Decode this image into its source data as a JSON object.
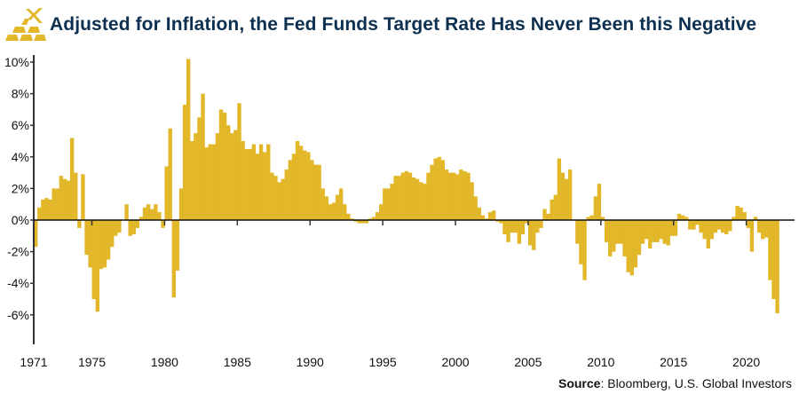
{
  "title": "Adjusted for Inflation, the Fed Funds Target Rate Has Never Been this Negative",
  "source": {
    "label": "Source",
    "text": ": Bloomberg, U.S. Global Investors"
  },
  "logo_icon": "gold-bars-icon",
  "chart_data": {
    "type": "bar",
    "title": "Adjusted for Inflation, the Fed Funds Target Rate Has Never Been this Negative",
    "xlabel": "",
    "ylabel": "",
    "unit": "%",
    "frequency": "quarterly",
    "xlim": [
      1971,
      2022.5
    ],
    "ylim": [
      -8,
      10
    ],
    "grid": false,
    "legend": "none",
    "bar_color": "#e2b82a",
    "x_tick_labels": [
      "1971",
      "1975",
      "1980",
      "1985",
      "1990",
      "1995",
      "2000",
      "2005",
      "2010",
      "2015",
      "2020"
    ],
    "y_tick_labels": [
      "10%",
      "8%",
      "6%",
      "4%",
      "2%",
      "0%",
      "-2%",
      "-4%",
      "-6%"
    ],
    "y_ticks": [
      10,
      8,
      6,
      4,
      2,
      0,
      -2,
      -4,
      -6
    ],
    "values_by_year": {
      "1971": [
        -1.7,
        0.8,
        1.3,
        1.4
      ],
      "1972": [
        1.3,
        2.0,
        2.0,
        2.8
      ],
      "1973": [
        2.6,
        2.5,
        5.2,
        3.0
      ],
      "1974": [
        -0.5,
        2.9,
        -2.2,
        -3.0
      ],
      "1975": [
        -5.0,
        -5.8,
        -3.1,
        -3.0
      ],
      "1976": [
        -2.5,
        -1.7,
        -1.0,
        -0.8
      ],
      "1977": [
        0.0,
        1.0,
        -1.0,
        -0.9
      ],
      "1978": [
        -0.5,
        0.2,
        0.8,
        1.0
      ],
      "1979": [
        0.7,
        1.0,
        0.5,
        -0.5
      ],
      "1980": [
        3.4,
        5.8,
        -4.9,
        -3.2
      ],
      "1981": [
        2.0,
        7.3,
        10.2,
        5.0
      ],
      "1982": [
        5.5,
        6.5,
        8.0,
        4.6
      ],
      "1983": [
        4.8,
        4.8,
        5.5,
        7.0
      ],
      "1984": [
        6.8,
        6.0,
        5.5,
        5.7
      ],
      "1985": [
        7.4,
        5.0,
        4.5,
        4.5
      ],
      "1986": [
        4.8,
        4.2,
        4.8,
        4.3
      ],
      "1987": [
        4.8,
        3.0,
        2.8,
        2.4
      ],
      "1988": [
        2.6,
        3.2,
        3.8,
        4.2
      ],
      "1989": [
        5.0,
        4.7,
        4.4,
        4.3
      ],
      "1990": [
        3.8,
        3.5,
        3.5,
        2.0
      ],
      "1991": [
        1.5,
        1.0,
        1.1,
        1.6
      ],
      "1992": [
        2.0,
        1.0,
        0.4,
        0.1
      ],
      "1993": [
        -0.1,
        -0.2,
        -0.2,
        -0.2
      ],
      "1994": [
        0.1,
        0.2,
        0.5,
        1.0
      ],
      "1995": [
        2.0,
        2.0,
        2.3,
        2.8
      ],
      "1996": [
        2.8,
        3.0,
        3.1,
        3.0
      ],
      "1997": [
        2.7,
        2.6,
        2.4,
        2.3
      ],
      "1998": [
        3.0,
        3.5,
        3.9,
        4.0
      ],
      "1999": [
        3.8,
        3.2,
        3.0,
        3.0
      ],
      "2000": [
        2.9,
        3.2,
        3.1,
        3.0
      ],
      "2001": [
        2.4,
        1.5,
        0.8,
        0.3
      ],
      "2002": [
        0.1,
        0.5,
        0.6,
        -0.1
      ],
      "2003": [
        -0.2,
        -0.9,
        -1.4,
        -0.8
      ],
      "2004": [
        -0.8,
        -1.5,
        -0.9,
        -0.2
      ],
      "2005": [
        -1.6,
        -1.9,
        -0.8,
        -0.5
      ],
      "2006": [
        0.7,
        0.4,
        1.3,
        1.6
      ],
      "2007": [
        3.9,
        3.0,
        2.6,
        3.2
      ],
      "2008": [
        0.0,
        -1.5,
        -2.8,
        -3.8
      ],
      "2009": [
        0.2,
        0.3,
        1.5,
        2.3
      ],
      "2010": [
        0.2,
        -1.4,
        -2.3,
        -2.0
      ],
      "2011": [
        -1.5,
        -1.5,
        -2.3,
        -3.3
      ],
      "2012": [
        -3.5,
        -3.0,
        -2.2,
        -1.5
      ],
      "2013": [
        -1.2,
        -1.8,
        -1.4,
        -1.4
      ],
      "2014": [
        -1.2,
        -1.5,
        -1.6,
        -1.0
      ],
      "2015": [
        -1.0,
        0.4,
        0.3,
        0.2
      ],
      "2016": [
        -0.6,
        -0.6,
        -0.3,
        -0.8
      ],
      "2017": [
        -1.2,
        -1.8,
        -1.2,
        -0.8
      ],
      "2018": [
        -0.6,
        -0.8,
        -0.9,
        -0.7
      ],
      "2019": [
        0.2,
        0.9,
        0.8,
        0.5
      ],
      "2020": [
        -0.5,
        -2.0,
        0.2,
        -0.8
      ],
      "2021": [
        -1.2,
        -1.1,
        -3.8,
        -5.0
      ],
      "2022": [
        -5.9
      ]
    }
  }
}
